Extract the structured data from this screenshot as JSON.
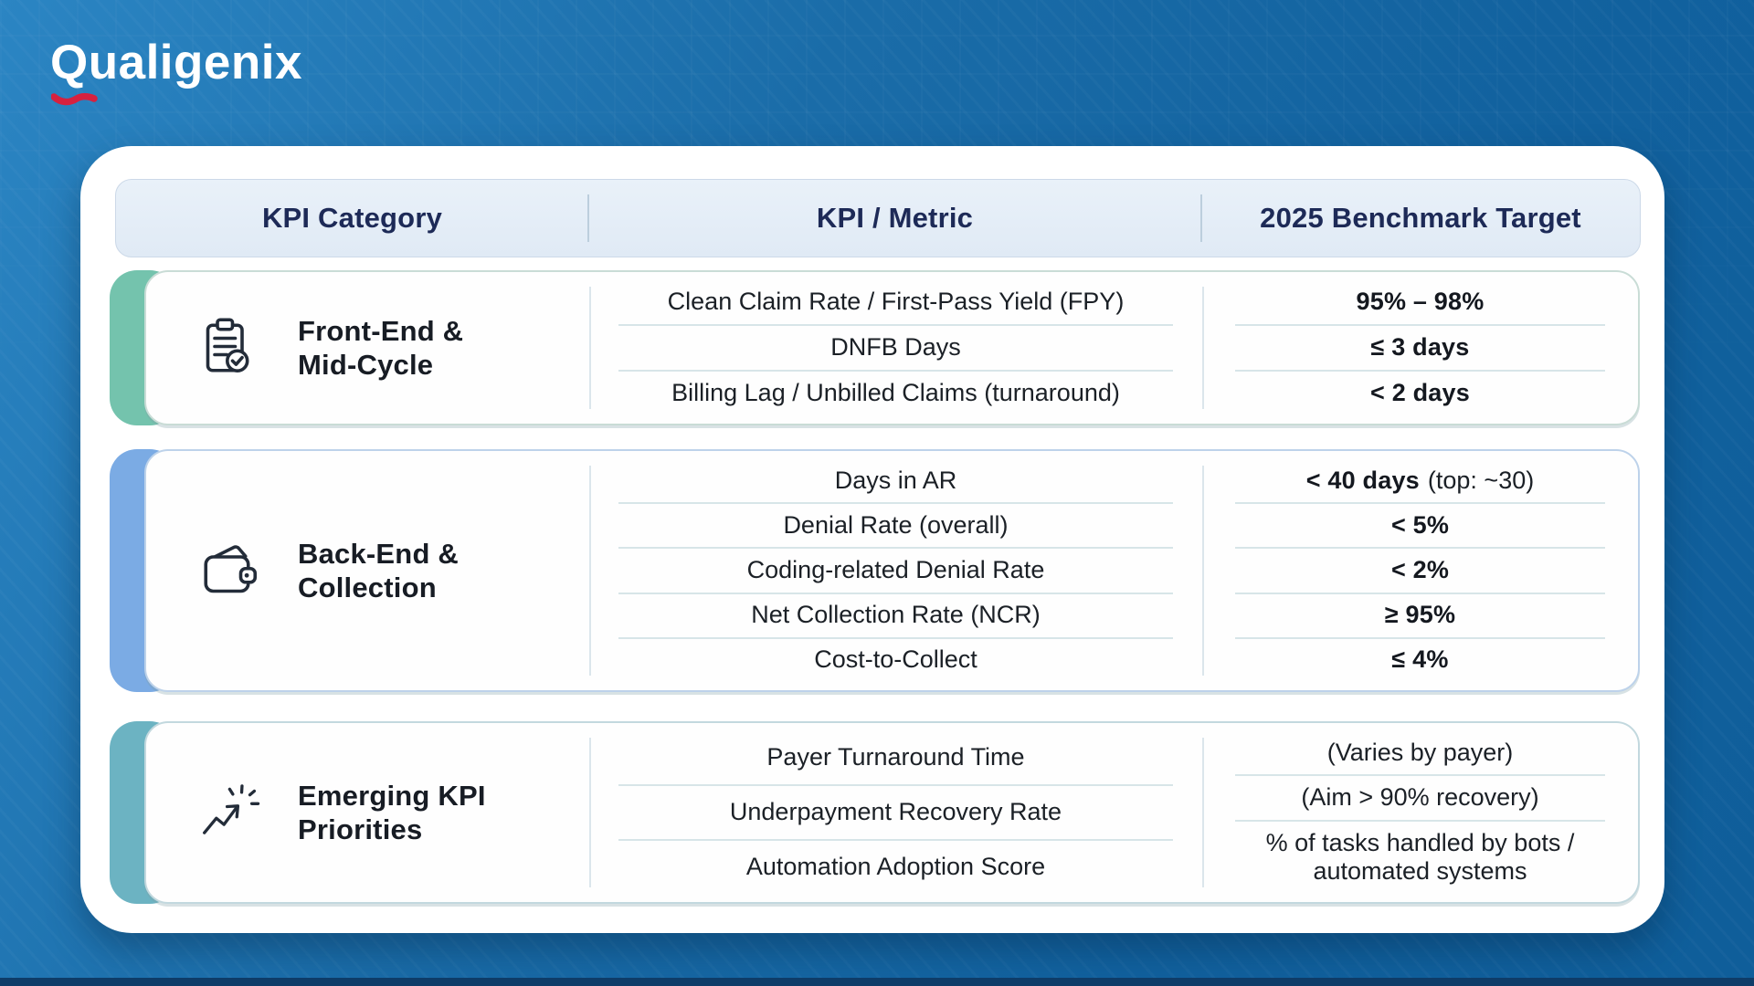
{
  "logo": {
    "text": "Qualigenix",
    "swoosh_color": "#d6213f"
  },
  "colors": {
    "background_blue": "#14669f",
    "bottom_strip": "#0e3c68",
    "header_bg": "#e4edf6",
    "header_text": "#1d2a57",
    "accent_teal": "#74c3ad",
    "accent_blue": "#7babe4",
    "accent_cyan": "#6cb3c2"
  },
  "table": {
    "headers": [
      "KPI Category",
      "KPI / Metric",
      "2025 Benchmark Target"
    ],
    "groups": [
      {
        "icon": "clipboard-check-icon",
        "icon_key": "clipboard",
        "accent_color": "#74c3ad",
        "border_color": "#c9dcd6",
        "category_lines": [
          "Front-End &",
          "Mid-Cycle"
        ],
        "rows": [
          {
            "metric": "Clean Claim Rate / First-Pass Yield (FPY)",
            "target_strong": "95% – 98%",
            "target_plain": ""
          },
          {
            "metric": "DNFB Days",
            "target_strong": "≤ 3 days",
            "target_plain": ""
          },
          {
            "metric": "Billing Lag / Unbilled Claims (turnaround)",
            "target_strong": "< 2 days",
            "target_plain": ""
          }
        ]
      },
      {
        "icon": "wallet-icon",
        "icon_key": "wallet",
        "accent_color": "#7babe4",
        "border_color": "#bdd2ea",
        "category_lines": [
          "Back-End &",
          "Collection"
        ],
        "rows": [
          {
            "metric": "Days in AR",
            "target_strong": "< 40 days",
            "target_plain": "(top: ~30)"
          },
          {
            "metric": "Denial Rate (overall)",
            "target_strong": "< 5%",
            "target_plain": ""
          },
          {
            "metric": "Coding-related Denial Rate",
            "target_strong": "< 2%",
            "target_plain": ""
          },
          {
            "metric": "Net Collection Rate (NCR)",
            "target_strong": "≥ 95%",
            "target_plain": ""
          },
          {
            "metric": "Cost-to-Collect",
            "target_strong": "≤ 4%",
            "target_plain": ""
          }
        ]
      },
      {
        "icon": "trending-arrow-icon",
        "icon_key": "trend",
        "accent_color": "#6cb3c2",
        "border_color": "#c2d8de",
        "category_lines": [
          "Emerging KPI",
          "Priorities"
        ],
        "rows": [
          {
            "metric": "Payer Turnaround Time",
            "target_strong": "",
            "target_plain": "(Varies by payer)"
          },
          {
            "metric": "Underpayment Recovery Rate",
            "target_strong": "",
            "target_plain": "(Aim > 90% recovery)"
          },
          {
            "metric": "Automation Adoption Score",
            "target_strong": "",
            "target_plain": "% of tasks handled by bots / automated systems"
          }
        ]
      }
    ]
  }
}
